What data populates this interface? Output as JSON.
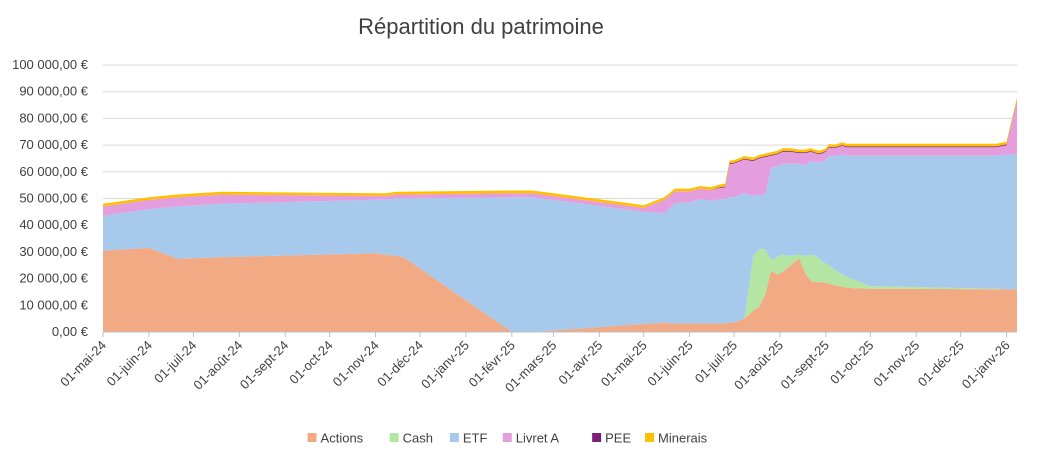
{
  "chart_data": {
    "type": "area",
    "stacked": true,
    "title": "Répartition du patrimoine",
    "xlabel": "",
    "ylabel": "",
    "ylim": [
      0,
      100000
    ],
    "y_ticks": [
      "0,00 €",
      "10 000,00 €",
      "20 000,00 €",
      "30 000,00 €",
      "40 000,00 €",
      "50 000,00 €",
      "60 000,00 €",
      "70 000,00 €",
      "80 000,00 €",
      "90 000,00 €",
      "100 000,00 €"
    ],
    "x_range": [
      "2024-05-01",
      "2026-01-08"
    ],
    "x_ticks": [
      {
        "date": "2024-05-01",
        "label": "01-mai-24"
      },
      {
        "date": "2024-06-01",
        "label": "01-juin-24"
      },
      {
        "date": "2024-07-01",
        "label": "01-juil-24"
      },
      {
        "date": "2024-08-01",
        "label": "01-août-24"
      },
      {
        "date": "2024-09-01",
        "label": "01-sept-24"
      },
      {
        "date": "2024-10-01",
        "label": "01-oct-24"
      },
      {
        "date": "2024-11-01",
        "label": "01-nov-24"
      },
      {
        "date": "2024-12-01",
        "label": "01-déc-24"
      },
      {
        "date": "2025-01-01",
        "label": "01-janv-25"
      },
      {
        "date": "2025-02-01",
        "label": "01-févr-25"
      },
      {
        "date": "2025-03-01",
        "label": "01-mars-25"
      },
      {
        "date": "2025-04-01",
        "label": "01-avr-25"
      },
      {
        "date": "2025-05-01",
        "label": "01-mai-25"
      },
      {
        "date": "2025-06-01",
        "label": "01-juin-25"
      },
      {
        "date": "2025-07-01",
        "label": "01-juil-25"
      },
      {
        "date": "2025-08-01",
        "label": "01-août-25"
      },
      {
        "date": "2025-09-01",
        "label": "01-sept-25"
      },
      {
        "date": "2025-10-01",
        "label": "01-oct-25"
      },
      {
        "date": "2025-11-01",
        "label": "01-nov-25"
      },
      {
        "date": "2025-12-01",
        "label": "01-déc-25"
      },
      {
        "date": "2026-01-01",
        "label": "01-janv-26"
      }
    ],
    "grid": true,
    "legend_position": "bottom",
    "dates": [
      "2024-05-01",
      "2024-06-01",
      "2024-06-20",
      "2024-07-20",
      "2024-11-01",
      "2024-11-08",
      "2024-11-15",
      "2024-11-20",
      "2025-02-01",
      "2025-02-15",
      "2025-05-01",
      "2025-05-15",
      "2025-05-22",
      "2025-06-01",
      "2025-06-08",
      "2025-06-15",
      "2025-06-22",
      "2025-06-25",
      "2025-06-28",
      "2025-07-01",
      "2025-07-08",
      "2025-07-14",
      "2025-07-18",
      "2025-07-22",
      "2025-07-26",
      "2025-07-30",
      "2025-08-03",
      "2025-08-08",
      "2025-08-14",
      "2025-08-18",
      "2025-08-22",
      "2025-08-25",
      "2025-08-28",
      "2025-09-01",
      "2025-09-03",
      "2025-09-07",
      "2025-09-12",
      "2025-09-15",
      "2025-10-01",
      "2025-12-25",
      "2026-01-01",
      "2026-01-08"
    ],
    "series": [
      {
        "name": "Actions",
        "color": "#F2AA84",
        "values": [
          30500,
          31500,
          27500,
          28000,
          29500,
          29000,
          28500,
          28000,
          0,
          0,
          3000,
          3500,
          3200,
          3200,
          3200,
          3200,
          3200,
          3300,
          3400,
          3600,
          5000,
          8000,
          9500,
          14000,
          23000,
          21500,
          22500,
          25000,
          27500,
          22000,
          19000,
          18800,
          18600,
          18500,
          18000,
          17500,
          17000,
          16500,
          16200,
          16000,
          16000,
          16000
        ]
      },
      {
        "name": "Cash",
        "color": "#B4E5A2",
        "values": [
          0,
          0,
          0,
          0,
          0,
          0,
          0,
          0,
          0,
          0,
          0,
          0,
          0,
          0,
          0,
          0,
          0,
          0,
          0,
          0,
          0,
          20500,
          21500,
          17000,
          4000,
          6500,
          6500,
          3500,
          1500,
          6500,
          10000,
          9800,
          8500,
          7000,
          7000,
          5800,
          4500,
          4200,
          1000,
          200,
          0,
          0
        ]
      },
      {
        "name": "ETF",
        "color": "#A6C9EC",
        "values": [
          13000,
          14500,
          19500,
          20000,
          20000,
          20500,
          21500,
          22000,
          50500,
          50500,
          42000,
          41000,
          45000,
          45500,
          46500,
          46000,
          46500,
          46500,
          47000,
          47000,
          47000,
          22500,
          20500,
          20500,
          34500,
          34000,
          34000,
          34500,
          34000,
          34000,
          35000,
          35000,
          36500,
          39000,
          41000,
          42500,
          45000,
          45300,
          48800,
          49800,
          50500,
          50500
        ]
      },
      {
        "name": "Livret A",
        "color": "#E49EDD",
        "values": [
          3500,
          3500,
          3500,
          3500,
          1500,
          1500,
          1500,
          1500,
          1500,
          1500,
          1500,
          5000,
          4500,
          4000,
          4000,
          4000,
          4300,
          4400,
          12500,
          12500,
          12600,
          13000,
          13500,
          14000,
          4500,
          4500,
          4500,
          4500,
          4000,
          4500,
          3500,
          3300,
          3000,
          3000,
          3100,
          3100,
          3200,
          3200,
          3200,
          3200,
          3500,
          20000
        ]
      },
      {
        "name": "PEE",
        "color": "#7A1F7A",
        "values": [
          0,
          0,
          0,
          0,
          0,
          0,
          0,
          0,
          0,
          0,
          0,
          0,
          0,
          0,
          0,
          0,
          300,
          300,
          300,
          300,
          300,
          300,
          300,
          300,
          300,
          300,
          300,
          300,
          300,
          300,
          300,
          300,
          300,
          300,
          300,
          300,
          300,
          300,
          300,
          300,
          300,
          300
        ]
      },
      {
        "name": "Minerais",
        "color": "#FFC000",
        "values": [
          1000,
          1000,
          1000,
          1000,
          1000,
          1000,
          1000,
          1000,
          1000,
          1000,
          1000,
          1000,
          1000,
          1000,
          1000,
          1000,
          1000,
          1000,
          1000,
          1000,
          1000,
          1000,
          1000,
          1000,
          1000,
          1000,
          1000,
          1000,
          1000,
          1000,
          1000,
          1000,
          1000,
          1000,
          1000,
          1000,
          1000,
          1000,
          1000,
          1000,
          1000,
          1000
        ]
      }
    ]
  }
}
